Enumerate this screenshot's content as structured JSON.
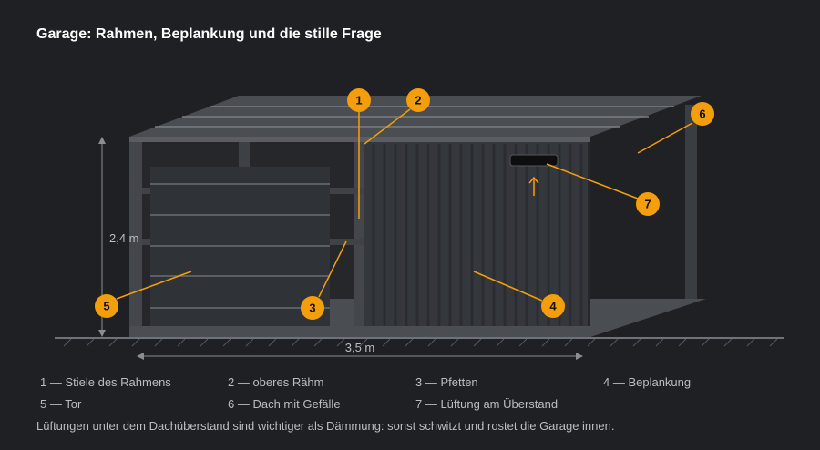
{
  "title": "Garage: Rahmen, Beplankung und die stille Frage",
  "dimensions": {
    "height": "2,4 m",
    "width": "3,5 m"
  },
  "callouts": [
    "1",
    "2",
    "3",
    "4",
    "5",
    "6",
    "7"
  ],
  "legend": [
    "1 — Stiele des Rahmens",
    "2 — oberes Rähm",
    "3 — Pfetten",
    "4 — Beplankung",
    "5 — Tor",
    "6 — Dach mit Gefälle",
    "7 — Lüftung am Überstand"
  ],
  "note": "Lüftungen unter dem Dachüberstand sind wichtiger als Dämmung: sonst schwitzt und rostet die Garage innen."
}
